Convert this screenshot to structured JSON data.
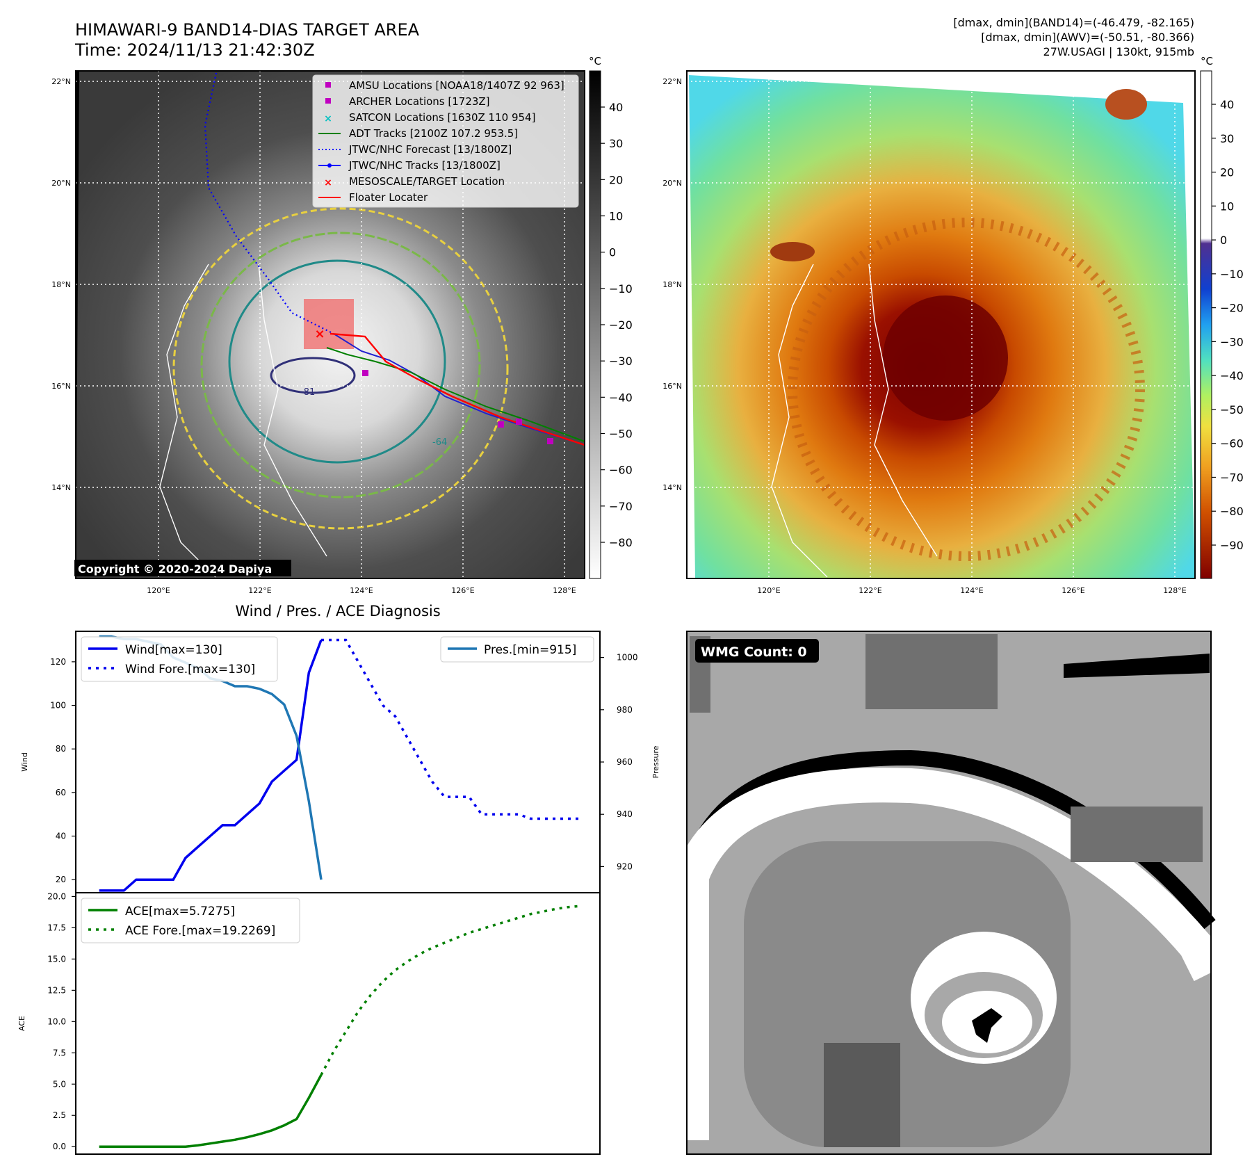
{
  "header": {
    "title": "HIMAWARI-9 BAND14-DIAS TARGET AREA",
    "time": "Time: 2024/11/13 21:42:30Z",
    "dmax_band14": "[dmax, dmin](BAND14)=(-46.479, -82.165)",
    "dmax_awv": "[dmax, dmin](AWV)=(-50.51, -80.366)",
    "storm": "27W.USAGI | 130kt, 915mb"
  },
  "ir_map": {
    "copyright": "Copyright © 2020-2024 Dapiya",
    "lat_labels": [
      "22°N",
      "20°N",
      "18°N",
      "16°N",
      "14°N"
    ],
    "lon_labels": [
      "120°E",
      "122°E",
      "124°E",
      "126°E",
      "128°E"
    ],
    "contour_label_1": "-81",
    "contour_label_2": "-64",
    "legend": [
      {
        "label": "AMSU Locations [NOAA18/1407Z 92 963]",
        "marker": "square",
        "color": "#c000c0"
      },
      {
        "label": "ARCHER Locations [1723Z]",
        "marker": "square",
        "color": "#c000c0"
      },
      {
        "label": "SATCON Locations [1630Z 110 954]",
        "marker": "x",
        "color": "#00c0c0"
      },
      {
        "label": "ADT Tracks [2100Z 107.2 953.5]",
        "marker": "line",
        "color": "#008000"
      },
      {
        "label": "JTWC/NHC Forecast [13/1800Z]",
        "marker": "dotted",
        "color": "#0000ff"
      },
      {
        "label": "JTWC/NHC Tracks [13/1800Z]",
        "marker": "line-dot",
        "color": "#0000ff"
      },
      {
        "label": "MESOSCALE/TARGET Location",
        "marker": "x",
        "color": "#ff0000"
      },
      {
        "label": "Floater Locater",
        "marker": "line",
        "color": "#ff0000"
      }
    ],
    "colorbar": {
      "unit": "°C",
      "ticks": [
        "40",
        "30",
        "20",
        "10",
        "0",
        "−10",
        "−20",
        "−30",
        "−40",
        "−50",
        "−60",
        "−70",
        "−80"
      ]
    }
  },
  "awv_map": {
    "lat_labels": [
      "22°N",
      "20°N",
      "18°N",
      "16°N",
      "14°N"
    ],
    "lon_labels": [
      "120°E",
      "122°E",
      "124°E",
      "126°E",
      "128°E"
    ],
    "colorbar": {
      "unit": "°C",
      "ticks": [
        "40",
        "30",
        "20",
        "10",
        "0",
        "−10",
        "−20",
        "−30",
        "−40",
        "−50",
        "−60",
        "−70",
        "−80",
        "−90"
      ]
    }
  },
  "wmg": {
    "label": "WMG Count: 0"
  },
  "chart_data": [
    {
      "type": "line",
      "title": "Wind / Pres. / ACE Diagnosis",
      "ylabel": "Wind",
      "ylabel_right": "Pressure",
      "ylim": [
        14,
        134
      ],
      "ylim_right": [
        910,
        1010
      ],
      "yticks": [
        20,
        40,
        60,
        80,
        100,
        120
      ],
      "yticks_right": [
        920,
        940,
        960,
        980,
        1000
      ],
      "legend_left": [
        "Wind[max=130]",
        "Wind Fore.[max=130]"
      ],
      "legend_right": [
        "Pres.[min=915]"
      ],
      "series": [
        {
          "name": "Wind[max=130]",
          "color": "#0000ee",
          "style": "solid",
          "x": [
            0,
            1,
            2,
            3,
            4,
            5,
            6,
            7,
            8,
            9,
            10,
            11,
            12,
            13,
            14,
            15,
            16,
            17,
            18
          ],
          "y": [
            15,
            15,
            15,
            20,
            20,
            20,
            20,
            30,
            35,
            40,
            45,
            45,
            50,
            55,
            65,
            70,
            75,
            115,
            130
          ]
        },
        {
          "name": "Wind Fore.[max=130]",
          "color": "#0000ee",
          "style": "dotted",
          "x": [
            18,
            19,
            20,
            21,
            22,
            23,
            24,
            25,
            26,
            27,
            28,
            29,
            30,
            31,
            32,
            33,
            34,
            35,
            36,
            37,
            38,
            39
          ],
          "y": [
            130,
            130,
            130,
            120,
            110,
            100,
            95,
            85,
            75,
            65,
            58,
            58,
            58,
            50,
            50,
            50,
            50,
            48,
            48,
            48,
            48,
            48
          ]
        },
        {
          "name": "Pres.[min=915]",
          "color": "#1f77b4",
          "style": "solid",
          "axis": "right",
          "x": [
            0,
            1,
            2,
            3,
            4,
            5,
            6,
            7,
            8,
            9,
            10,
            11,
            12,
            13,
            14,
            15,
            16,
            17,
            18
          ],
          "y": [
            1008,
            1008,
            1007,
            1007,
            1006,
            1005,
            1000,
            998,
            996,
            992,
            991,
            989,
            989,
            988,
            986,
            982,
            970,
            945,
            915
          ]
        }
      ]
    },
    {
      "type": "line",
      "ylabel": "ACE",
      "ylim": [
        -0.6,
        20.3
      ],
      "yticks": [
        0.0,
        2.5,
        5.0,
        7.5,
        10.0,
        12.5,
        15.0,
        17.5,
        20.0
      ],
      "legend": [
        "ACE[max=5.7275]",
        "ACE Fore.[max=19.2269]"
      ],
      "series": [
        {
          "name": "ACE[max=5.7275]",
          "color": "#008000",
          "style": "solid",
          "x": [
            0,
            1,
            2,
            3,
            4,
            5,
            6,
            7,
            8,
            9,
            10,
            11,
            12,
            13,
            14,
            15,
            16,
            17,
            18
          ],
          "y": [
            0,
            0,
            0,
            0,
            0,
            0,
            0,
            0,
            0.1,
            0.25,
            0.4,
            0.55,
            0.75,
            1.0,
            1.3,
            1.7,
            2.2,
            3.9,
            5.73
          ]
        },
        {
          "name": "ACE Fore.[max=19.2269]",
          "color": "#008000",
          "style": "dotted",
          "x": [
            18,
            19,
            20,
            21,
            22,
            23,
            24,
            25,
            26,
            27,
            28,
            29,
            30,
            31,
            32,
            33,
            34,
            35,
            36,
            37,
            38,
            39
          ],
          "y": [
            5.73,
            7.6,
            9.2,
            10.8,
            12.1,
            13.2,
            14.1,
            14.8,
            15.4,
            15.9,
            16.3,
            16.7,
            17.1,
            17.4,
            17.7,
            18.0,
            18.3,
            18.6,
            18.8,
            19.0,
            19.15,
            19.23
          ]
        }
      ]
    }
  ]
}
